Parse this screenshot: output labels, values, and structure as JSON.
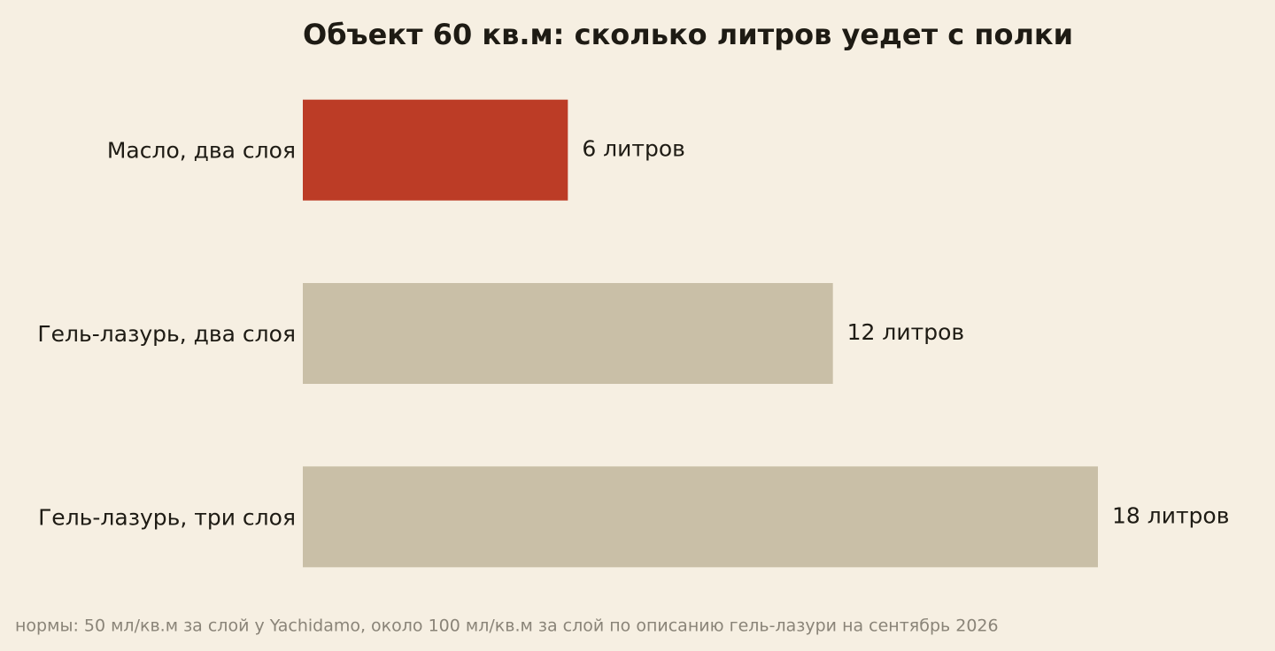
{
  "chart_data": {
    "type": "bar",
    "orientation": "horizontal",
    "title": "Объект 60 кв.м: сколько литров уедет с полки",
    "categories": [
      "Масло, два слоя",
      "Гель-лазурь, два слоя",
      "Гель-лазурь, три слоя"
    ],
    "values": [
      6,
      12,
      18
    ],
    "value_labels": [
      "6 литров",
      "12 литров",
      "18 литров"
    ],
    "colors": [
      "#bc3c26",
      "#c9bfa7",
      "#c9bfa7"
    ],
    "footnote": "нормы: 50 мл/кв.м за слой у Yachidamo, около 100 мл/кв.м за слой по описанию гель-лазури на сентябрь 2026"
  }
}
